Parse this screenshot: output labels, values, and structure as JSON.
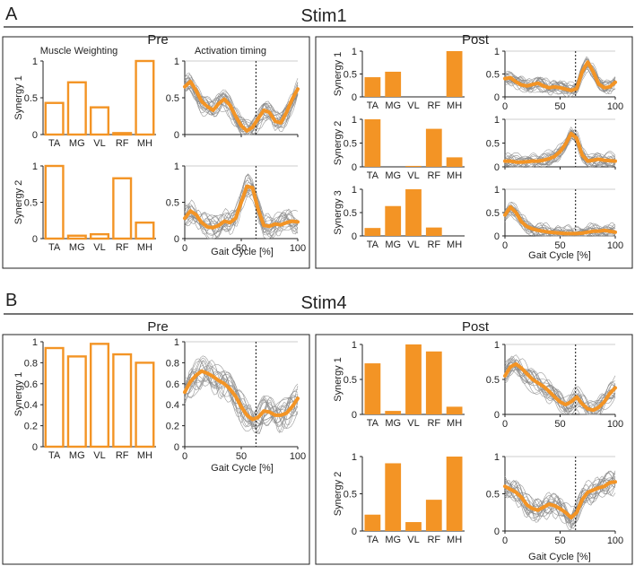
{
  "muscles": [
    "TA",
    "MG",
    "VL",
    "RF",
    "MH"
  ],
  "colors": {
    "accent": "#f39425",
    "trace": "#8a8a8a",
    "mean": "#f39425",
    "frame": "#222222"
  },
  "panel_a": {
    "letter": "A",
    "title": "Stim1",
    "pre_label": "Pre",
    "post_label": "Post",
    "weighting_title": "Muscle Weighting",
    "timing_title": "Activation timing"
  },
  "panel_b": {
    "letter": "B",
    "title": "Stim4",
    "pre_label": "Pre",
    "post_label": "Post"
  },
  "xlabel": "Gait Cycle [%]",
  "chart_data": [
    {
      "id": "a-pre-s1-bar",
      "type": "bar",
      "style": "outline",
      "ylabel": "Synergy 1",
      "categories": [
        "TA",
        "MG",
        "VL",
        "RF",
        "MH"
      ],
      "values": [
        0.43,
        0.71,
        0.37,
        0.02,
        1.0
      ],
      "ylim": [
        0,
        1
      ],
      "yticks": [
        "0",
        "0.5",
        "1"
      ],
      "ytick_values": [
        0,
        0.5,
        1
      ]
    },
    {
      "id": "a-pre-s1-time",
      "type": "line",
      "ylim": [
        0,
        1
      ],
      "xlim": [
        0,
        100
      ],
      "yticks": [
        "0",
        "0.5",
        "1"
      ],
      "ytick_values": [
        0,
        0.5,
        1
      ],
      "xticks": [],
      "stance_end": 63,
      "mean": {
        "x": [
          0,
          5,
          10,
          15,
          20,
          25,
          30,
          35,
          40,
          45,
          50,
          55,
          60,
          65,
          70,
          75,
          80,
          85,
          90,
          95,
          100
        ],
        "y": [
          0.65,
          0.72,
          0.6,
          0.45,
          0.38,
          0.33,
          0.42,
          0.48,
          0.4,
          0.25,
          0.12,
          0.05,
          0.1,
          0.22,
          0.33,
          0.3,
          0.18,
          0.16,
          0.3,
          0.48,
          0.62
        ]
      }
    },
    {
      "id": "a-pre-s2-bar",
      "type": "bar",
      "style": "outline",
      "ylabel": "Synergy 2",
      "categories": [
        "TA",
        "MG",
        "VL",
        "RF",
        "MH"
      ],
      "values": [
        1.0,
        0.04,
        0.06,
        0.83,
        0.22
      ],
      "ylim": [
        0,
        1
      ],
      "yticks": [
        "0",
        "0.5",
        "1"
      ],
      "ytick_values": [
        0,
        0.5,
        1
      ]
    },
    {
      "id": "a-pre-s2-time",
      "type": "line",
      "ylim": [
        0,
        1
      ],
      "xlim": [
        0,
        100
      ],
      "yticks": [
        "0",
        "0.5",
        "1"
      ],
      "ytick_values": [
        0,
        0.5,
        1
      ],
      "xticks": [
        "0",
        "50",
        "100"
      ],
      "stance_end": 63,
      "mean": {
        "x": [
          0,
          5,
          10,
          15,
          20,
          25,
          30,
          35,
          40,
          45,
          50,
          55,
          60,
          65,
          70,
          75,
          80,
          85,
          90,
          95,
          100
        ],
        "y": [
          0.28,
          0.38,
          0.33,
          0.22,
          0.16,
          0.15,
          0.18,
          0.24,
          0.22,
          0.28,
          0.5,
          0.72,
          0.7,
          0.4,
          0.18,
          0.17,
          0.2,
          0.19,
          0.22,
          0.24,
          0.23
        ]
      }
    },
    {
      "id": "a-post-s1-bar",
      "type": "bar",
      "style": "filled",
      "ylabel": "Synergy 1",
      "categories": [
        "TA",
        "MG",
        "VL",
        "RF",
        "MH"
      ],
      "values": [
        0.43,
        0.55,
        0.0,
        0.0,
        1.0
      ],
      "ylim": [
        0,
        1
      ],
      "yticks": [
        "0",
        "0.5",
        "1"
      ],
      "ytick_values": [
        0,
        0.5,
        1
      ]
    },
    {
      "id": "a-post-s1-time",
      "type": "line",
      "ylim": [
        0,
        1
      ],
      "xlim": [
        0,
        100
      ],
      "yticks": [
        "0",
        "0.5",
        "1"
      ],
      "ytick_values": [
        0,
        0.5,
        1
      ],
      "xticks": [
        "0",
        "50",
        "100"
      ],
      "stance_end": 64,
      "mean": {
        "x": [
          0,
          5,
          10,
          15,
          20,
          25,
          30,
          35,
          40,
          45,
          50,
          55,
          60,
          65,
          70,
          75,
          80,
          85,
          90,
          95,
          100
        ],
        "y": [
          0.4,
          0.42,
          0.33,
          0.26,
          0.24,
          0.27,
          0.3,
          0.24,
          0.2,
          0.22,
          0.2,
          0.17,
          0.14,
          0.18,
          0.55,
          0.76,
          0.55,
          0.28,
          0.2,
          0.22,
          0.32
        ]
      }
    },
    {
      "id": "a-post-s2-bar",
      "type": "bar",
      "style": "filled",
      "ylabel": "Synergy 2",
      "categories": [
        "TA",
        "MG",
        "VL",
        "RF",
        "MH"
      ],
      "values": [
        1.0,
        0.0,
        0.02,
        0.8,
        0.2
      ],
      "ylim": [
        0,
        1
      ],
      "yticks": [
        "0",
        "0.5",
        "1"
      ],
      "ytick_values": [
        0,
        0.5,
        1
      ]
    },
    {
      "id": "a-post-s2-time",
      "type": "line",
      "ylim": [
        0,
        1
      ],
      "xlim": [
        0,
        100
      ],
      "yticks": [
        "0",
        "0.5",
        "1"
      ],
      "ytick_values": [
        0,
        0.5,
        1
      ],
      "xticks": [],
      "stance_end": 64,
      "mean": {
        "x": [
          0,
          5,
          10,
          15,
          20,
          25,
          30,
          35,
          40,
          45,
          50,
          55,
          60,
          65,
          70,
          75,
          80,
          85,
          90,
          95,
          100
        ],
        "y": [
          0.12,
          0.12,
          0.1,
          0.1,
          0.11,
          0.12,
          0.12,
          0.14,
          0.17,
          0.22,
          0.32,
          0.48,
          0.7,
          0.6,
          0.25,
          0.12,
          0.14,
          0.16,
          0.14,
          0.13,
          0.12
        ]
      }
    },
    {
      "id": "a-post-s3-bar",
      "type": "bar",
      "style": "filled",
      "ylabel": "Synergy 3",
      "categories": [
        "TA",
        "MG",
        "VL",
        "RF",
        "MH"
      ],
      "values": [
        0.17,
        0.64,
        1.0,
        0.18,
        0.0
      ],
      "ylim": [
        0,
        1
      ],
      "yticks": [
        "0",
        "0.5",
        "1"
      ],
      "ytick_values": [
        0,
        0.5,
        1
      ]
    },
    {
      "id": "a-post-s3-time",
      "type": "line",
      "ylim": [
        0,
        1
      ],
      "xlim": [
        0,
        100
      ],
      "yticks": [
        "0",
        "0.5",
        "1"
      ],
      "ytick_values": [
        0,
        0.5,
        1
      ],
      "xticks": [
        "0",
        "50",
        "100"
      ],
      "stance_end": 64,
      "mean": {
        "x": [
          0,
          5,
          10,
          15,
          20,
          25,
          30,
          35,
          40,
          45,
          50,
          55,
          60,
          65,
          70,
          75,
          80,
          85,
          90,
          95,
          100
        ],
        "y": [
          0.45,
          0.62,
          0.5,
          0.3,
          0.2,
          0.15,
          0.12,
          0.1,
          0.08,
          0.07,
          0.06,
          0.05,
          0.05,
          0.05,
          0.06,
          0.08,
          0.1,
          0.1,
          0.12,
          0.1,
          0.08
        ]
      }
    },
    {
      "id": "b-pre-s1-bar",
      "type": "bar",
      "style": "outline",
      "ylabel": "Synergy 1",
      "categories": [
        "TA",
        "MG",
        "VL",
        "RF",
        "MH"
      ],
      "values": [
        0.94,
        0.86,
        0.98,
        0.88,
        0.8
      ],
      "ylim": [
        0,
        1
      ],
      "yticks": [
        "0",
        "0.2",
        "0.4",
        "0.6",
        "0.8",
        "1"
      ],
      "ytick_values": [
        0,
        0.2,
        0.4,
        0.6,
        0.8,
        1
      ]
    },
    {
      "id": "b-pre-s1-time",
      "type": "line",
      "ylim": [
        0,
        1
      ],
      "xlim": [
        0,
        100
      ],
      "yticks": [
        "0",
        "0.2",
        "0.4",
        "0.6",
        "0.8",
        "1"
      ],
      "ytick_values": [
        0,
        0.2,
        0.4,
        0.6,
        0.8,
        1
      ],
      "xticks": [
        "0",
        "50",
        "100"
      ],
      "stance_end": 63,
      "mean": {
        "x": [
          0,
          5,
          10,
          15,
          20,
          25,
          30,
          35,
          40,
          45,
          50,
          55,
          60,
          65,
          70,
          75,
          80,
          85,
          90,
          95,
          100
        ],
        "y": [
          0.52,
          0.62,
          0.68,
          0.72,
          0.7,
          0.67,
          0.63,
          0.6,
          0.55,
          0.48,
          0.38,
          0.3,
          0.26,
          0.28,
          0.34,
          0.33,
          0.3,
          0.3,
          0.32,
          0.38,
          0.46
        ]
      }
    },
    {
      "id": "b-post-s1-bar",
      "type": "bar",
      "style": "filled",
      "ylabel": "Synergy 1",
      "categories": [
        "TA",
        "MG",
        "VL",
        "RF",
        "MH"
      ],
      "values": [
        0.73,
        0.05,
        1.0,
        0.9,
        0.11
      ],
      "ylim": [
        0,
        1
      ],
      "yticks": [
        "0",
        "0.5",
        "1"
      ],
      "ytick_values": [
        0,
        0.5,
        1
      ]
    },
    {
      "id": "b-post-s1-time",
      "type": "line",
      "ylim": [
        0,
        1
      ],
      "xlim": [
        0,
        100
      ],
      "yticks": [
        "0",
        "0.5",
        "1"
      ],
      "ytick_values": [
        0,
        0.5,
        1
      ],
      "xticks": [
        "0",
        "50",
        "100"
      ],
      "stance_end": 64,
      "mean": {
        "x": [
          0,
          5,
          10,
          15,
          20,
          25,
          30,
          35,
          40,
          45,
          50,
          55,
          60,
          65,
          70,
          75,
          80,
          85,
          90,
          95,
          100
        ],
        "y": [
          0.55,
          0.68,
          0.72,
          0.66,
          0.58,
          0.5,
          0.45,
          0.4,
          0.33,
          0.25,
          0.18,
          0.14,
          0.18,
          0.25,
          0.15,
          0.08,
          0.06,
          0.1,
          0.18,
          0.3,
          0.38
        ]
      }
    },
    {
      "id": "b-post-s2-bar",
      "type": "bar",
      "style": "filled",
      "ylabel": "Synergy 2",
      "categories": [
        "TA",
        "MG",
        "VL",
        "RF",
        "MH"
      ],
      "values": [
        0.22,
        0.91,
        0.12,
        0.42,
        1.0
      ],
      "ylim": [
        0,
        1
      ],
      "yticks": [
        "0",
        "0.5",
        "1"
      ],
      "ytick_values": [
        0,
        0.5,
        1
      ]
    },
    {
      "id": "b-post-s2-time",
      "type": "line",
      "ylim": [
        0,
        1
      ],
      "xlim": [
        0,
        100
      ],
      "yticks": [
        "0",
        "0.5",
        "1"
      ],
      "ytick_values": [
        0,
        0.5,
        1
      ],
      "xticks": [
        "0",
        "50",
        "100"
      ],
      "stance_end": 64,
      "mean": {
        "x": [
          0,
          5,
          10,
          15,
          20,
          25,
          30,
          35,
          40,
          45,
          50,
          55,
          60,
          65,
          70,
          75,
          80,
          85,
          90,
          95,
          100
        ],
        "y": [
          0.6,
          0.56,
          0.52,
          0.45,
          0.35,
          0.3,
          0.28,
          0.32,
          0.36,
          0.34,
          0.3,
          0.25,
          0.18,
          0.25,
          0.42,
          0.52,
          0.55,
          0.58,
          0.6,
          0.65,
          0.66
        ]
      }
    }
  ]
}
